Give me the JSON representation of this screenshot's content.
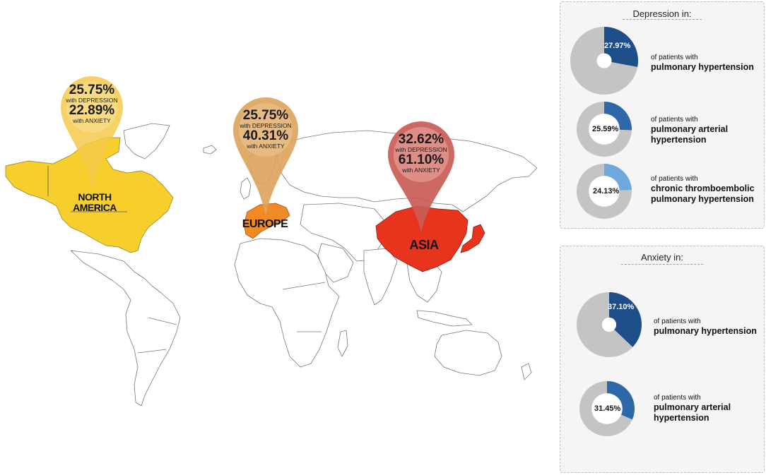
{
  "map": {
    "regions": [
      {
        "id": "north-america",
        "label": "NORTH\nAMERICA",
        "color": "#f7cf2c",
        "depression": "25.75%",
        "depression_label": "with DEPRESSION",
        "anxiety": "22.89%",
        "anxiety_label": "with ANXIETY"
      },
      {
        "id": "europe",
        "label": "EUROPE",
        "color": "#f08a24",
        "depression": "25.75%",
        "depression_label": "with DEPRESSION",
        "anxiety": "40.31%",
        "anxiety_label": "with ANXIETY"
      },
      {
        "id": "asia",
        "label": "ASIA",
        "color": "#e8341c",
        "depression": "32.62%",
        "depression_label": "with DEPRESSION",
        "anxiety": "61.10%",
        "anxiety_label": "with ANXIETY"
      }
    ],
    "pin_colors": {
      "north-america": "#f4c94a",
      "europe": "#dda35c",
      "asia": "#c95c55"
    }
  },
  "chart_data": [
    {
      "type": "pie",
      "title": "Depression in:",
      "slices": [
        {
          "value": 27.97,
          "label": "27.97%",
          "caption_small": "of patients with",
          "caption_big": "pulmonary hypertension",
          "color": "#1d4e89"
        },
        {
          "value": 25.59,
          "label": "25.59%",
          "caption_small": "of patients with",
          "caption_big": "pulmonary arterial hypertension",
          "color": "#2e68a8"
        },
        {
          "value": 24.13,
          "label": "24.13%",
          "caption_small": "of patients with",
          "caption_big": "chronic thromboembolic pulmonary hypertension",
          "color": "#6fa8dc"
        }
      ],
      "remainder_color": "#c4c4c4"
    },
    {
      "type": "pie",
      "title": "Anxiety in:",
      "slices": [
        {
          "value": 37.1,
          "label": "37.10%",
          "caption_small": "of patients with",
          "caption_big": "pulmonary hypertension",
          "color": "#1d4e89"
        },
        {
          "value": 31.45,
          "label": "31.45%",
          "caption_small": "of patients with",
          "caption_big": "pulmonary arterial hypertension",
          "color": "#2e68a8"
        }
      ],
      "remainder_color": "#c4c4c4"
    }
  ]
}
